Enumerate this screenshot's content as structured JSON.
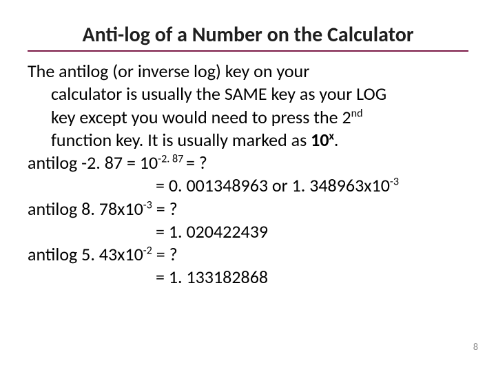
{
  "title": {
    "text": "Anti-log of a Number on the Calculator",
    "color": "#1f1f1f",
    "fontsize": 30,
    "underline_color": "#7b1a47",
    "underline_width": 2
  },
  "body": {
    "fontsize": 26,
    "color": "#000000",
    "para1_a": "The antilog (or inverse log) key on your",
    "para1_b": "calculator is usually the SAME key as your LOG",
    "para1_c_pre": "key except you would need to press the 2",
    "para1_c_sup": "nd",
    "para1_d_pre": "function key.  It is usually marked as ",
    "para1_d_bold_base": "10",
    "para1_d_bold_sup": "x",
    "para1_d_post": ".",
    "eq1_l": "antilog -2. 87 = 10",
    "eq1_sup": "-2. 87 ",
    "eq1_r": "= ?",
    "eq1_res_pre": "= 0. 001348963 or 1. 348963x10",
    "eq1_res_sup": "-3",
    "eq2_l": "antilog 8. 78x10",
    "eq2_sup": "-3",
    "eq2_r": " = ?",
    "eq2_res": "= 1. 020422439",
    "eq3_l": "antilog 5. 43x10",
    "eq3_sup": "-2",
    "eq3_r": " = ?",
    "eq3_res": "= 1. 133182868"
  },
  "page_number": {
    "value": "8",
    "color": "#8a8a8a",
    "fontsize": 14
  }
}
